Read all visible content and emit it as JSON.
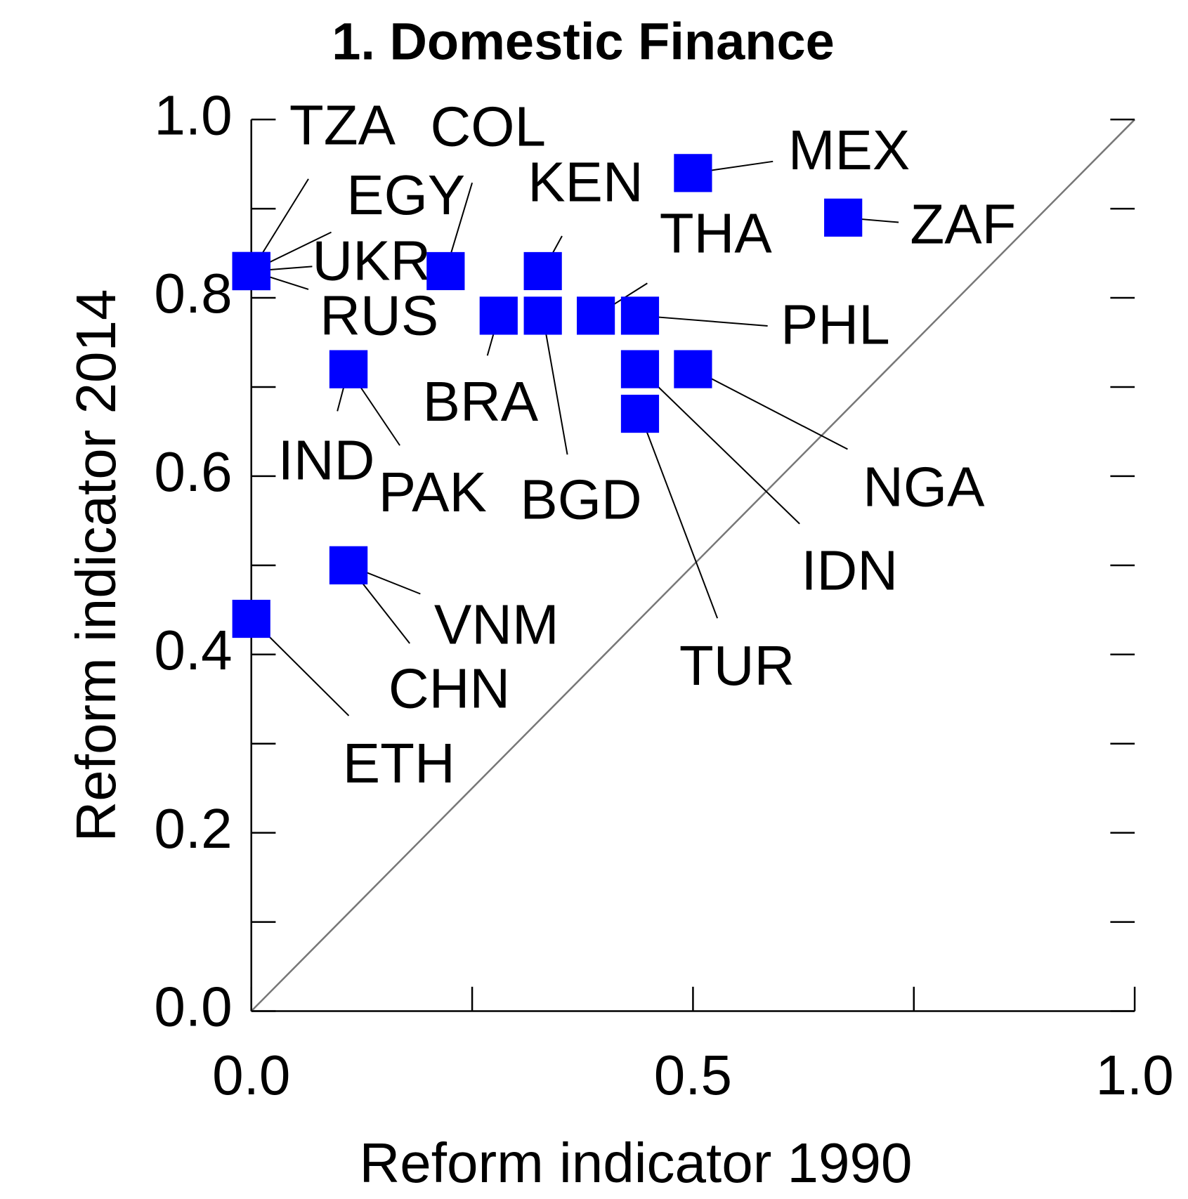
{
  "chart_data": {
    "type": "scatter",
    "title": "1. Domestic Finance",
    "xlabel": "Reform indicator 1990",
    "ylabel": "Reform indicator 2014",
    "color": "#0000ff",
    "xlim": [
      0,
      1
    ],
    "ylim": [
      0,
      1
    ],
    "xticks": [
      {
        "value": 0,
        "label": "0.0"
      },
      {
        "value": 0.5,
        "label": "0.5"
      },
      {
        "value": 1,
        "label": "1.0"
      }
    ],
    "xminorticks": [
      0.25,
      0.75
    ],
    "yticks": [
      {
        "value": 0,
        "label": "0.0"
      },
      {
        "value": 0.2,
        "label": "0.2"
      },
      {
        "value": 0.4,
        "label": "0.4"
      },
      {
        "value": 0.6,
        "label": "0.6"
      },
      {
        "value": 0.8,
        "label": "0.8"
      },
      {
        "value": 1,
        "label": "1.0"
      }
    ],
    "yminorticks": [
      0.1,
      0.3,
      0.5,
      0.7,
      0.9
    ],
    "points": [
      {
        "label": "TZA",
        "x": 0,
        "y": 0.83
      },
      {
        "label": "EGY",
        "x": 0,
        "y": 0.83
      },
      {
        "label": "UKR",
        "x": 0,
        "y": 0.83
      },
      {
        "label": "RUS",
        "x": 0,
        "y": 0.83
      },
      {
        "label": "COL",
        "x": 0.22,
        "y": 0.83
      },
      {
        "label": "KEN",
        "x": 0.33,
        "y": 0.83
      },
      {
        "label": "MEX",
        "x": 0.5,
        "y": 0.94
      },
      {
        "label": "ZAF",
        "x": 0.67,
        "y": 0.89
      },
      {
        "label": "THA",
        "x": 0.39,
        "y": 0.78
      },
      {
        "label": "PHL",
        "x": 0.44,
        "y": 0.78
      },
      {
        "label": "BRA",
        "x": 0.28,
        "y": 0.78
      },
      {
        "label": "BGD",
        "x": 0.33,
        "y": 0.78
      },
      {
        "label": "IND",
        "x": 0.11,
        "y": 0.72
      },
      {
        "label": "PAK",
        "x": 0.11,
        "y": 0.72
      },
      {
        "label": "NGA",
        "x": 0.5,
        "y": 0.72
      },
      {
        "label": "IDN",
        "x": 0.44,
        "y": 0.72
      },
      {
        "label": "TUR",
        "x": 0.44,
        "y": 0.67
      },
      {
        "label": "VNM",
        "x": 0.11,
        "y": 0.5
      },
      {
        "label": "CHN",
        "x": 0.11,
        "y": 0.5
      },
      {
        "label": "ETH",
        "x": 0,
        "y": 0.44
      }
    ]
  }
}
